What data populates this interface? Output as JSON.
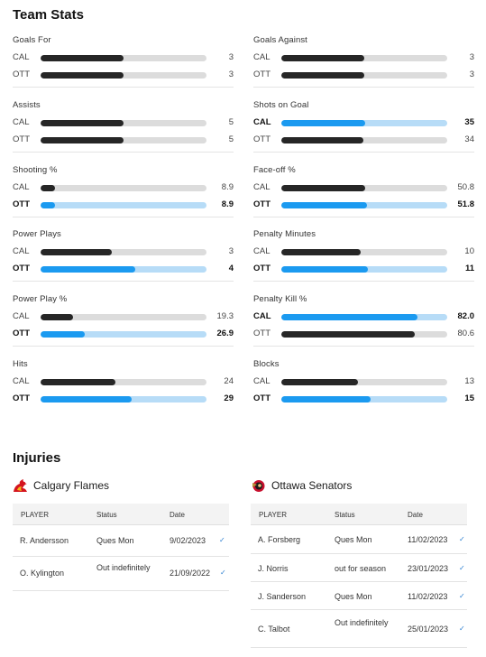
{
  "team_stats": {
    "title": "Team Stats",
    "stats": [
      {
        "label": "Goals For",
        "rows": [
          {
            "team": "CAL",
            "value": "3",
            "fraction": 0.5,
            "bold": false,
            "highlight": false
          },
          {
            "team": "OTT",
            "value": "3",
            "fraction": 0.5,
            "bold": false,
            "highlight": false
          }
        ]
      },
      {
        "label": "Goals Against",
        "rows": [
          {
            "team": "CAL",
            "value": "3",
            "fraction": 0.5,
            "bold": false,
            "highlight": false
          },
          {
            "team": "OTT",
            "value": "3",
            "fraction": 0.5,
            "bold": false,
            "highlight": false
          }
        ]
      },
      {
        "label": "Assists",
        "rows": [
          {
            "team": "CAL",
            "value": "5",
            "fraction": 0.5,
            "bold": false,
            "highlight": false
          },
          {
            "team": "OTT",
            "value": "5",
            "fraction": 0.5,
            "bold": false,
            "highlight": false
          }
        ]
      },
      {
        "label": "Shots on Goal",
        "rows": [
          {
            "team": "CAL",
            "value": "35",
            "fraction": 0.507,
            "bold": true,
            "highlight": true
          },
          {
            "team": "OTT",
            "value": "34",
            "fraction": 0.493,
            "bold": false,
            "highlight": false
          }
        ]
      },
      {
        "label": "Shooting %",
        "rows": [
          {
            "team": "CAL",
            "value": "8.9",
            "fraction": 0.089,
            "bold": false,
            "highlight": false
          },
          {
            "team": "OTT",
            "value": "8.9",
            "fraction": 0.089,
            "bold": true,
            "highlight": true
          }
        ]
      },
      {
        "label": "Face-off %",
        "rows": [
          {
            "team": "CAL",
            "value": "50.8",
            "fraction": 0.508,
            "bold": false,
            "highlight": false
          },
          {
            "team": "OTT",
            "value": "51.8",
            "fraction": 0.518,
            "bold": true,
            "highlight": true
          }
        ]
      },
      {
        "label": "Power Plays",
        "rows": [
          {
            "team": "CAL",
            "value": "3",
            "fraction": 0.429,
            "bold": false,
            "highlight": false
          },
          {
            "team": "OTT",
            "value": "4",
            "fraction": 0.571,
            "bold": true,
            "highlight": true
          }
        ]
      },
      {
        "label": "Penalty Minutes",
        "rows": [
          {
            "team": "CAL",
            "value": "10",
            "fraction": 0.476,
            "bold": false,
            "highlight": false
          },
          {
            "team": "OTT",
            "value": "11",
            "fraction": 0.524,
            "bold": true,
            "highlight": true
          }
        ]
      },
      {
        "label": "Power Play %",
        "rows": [
          {
            "team": "CAL",
            "value": "19.3",
            "fraction": 0.193,
            "bold": false,
            "highlight": false
          },
          {
            "team": "OTT",
            "value": "26.9",
            "fraction": 0.269,
            "bold": true,
            "highlight": true
          }
        ]
      },
      {
        "label": "Penalty Kill %",
        "rows": [
          {
            "team": "CAL",
            "value": "82.0",
            "fraction": 0.82,
            "bold": true,
            "highlight": true
          },
          {
            "team": "OTT",
            "value": "80.6",
            "fraction": 0.806,
            "bold": false,
            "highlight": false
          }
        ]
      },
      {
        "label": "Hits",
        "rows": [
          {
            "team": "CAL",
            "value": "24",
            "fraction": 0.453,
            "bold": false,
            "highlight": false
          },
          {
            "team": "OTT",
            "value": "29",
            "fraction": 0.547,
            "bold": true,
            "highlight": true
          }
        ]
      },
      {
        "label": "Blocks",
        "rows": [
          {
            "team": "CAL",
            "value": "13",
            "fraction": 0.464,
            "bold": false,
            "highlight": false
          },
          {
            "team": "OTT",
            "value": "15",
            "fraction": 0.536,
            "bold": true,
            "highlight": true
          }
        ]
      }
    ]
  },
  "injuries": {
    "title": "Injuries",
    "teams": [
      {
        "name": "Calgary Flames",
        "logo_icon": "calgary-flames-logo-icon",
        "columns": {
          "player": "PLAYER",
          "status": "Status",
          "date": "Date"
        },
        "rows": [
          {
            "player": "R. Andersson",
            "status": "Ques Mon",
            "date": "9/02/2023"
          },
          {
            "player": "O. Kylington",
            "status": "Out indefinitely",
            "date": "21/09/2022"
          }
        ]
      },
      {
        "name": "Ottawa Senators",
        "logo_icon": "ottawa-senators-logo-icon",
        "columns": {
          "player": "PLAYER",
          "status": "Status",
          "date": "Date"
        },
        "rows": [
          {
            "player": "A. Forsberg",
            "status": "Ques Mon",
            "date": "11/02/2023"
          },
          {
            "player": "J. Norris",
            "status": "out for season",
            "date": "23/01/2023"
          },
          {
            "player": "J. Sanderson",
            "status": "Ques Mon",
            "date": "11/02/2023"
          },
          {
            "player": "C. Talbot",
            "status": "Out indefinitely",
            "date": "25/01/2023"
          }
        ]
      }
    ]
  },
  "colors": {
    "highlight_fill": "#1b9af0",
    "highlight_track": "#b7dcf7",
    "dark_fill": "#262626",
    "track": "#dcdcdc",
    "link": "#2d7fd0"
  }
}
